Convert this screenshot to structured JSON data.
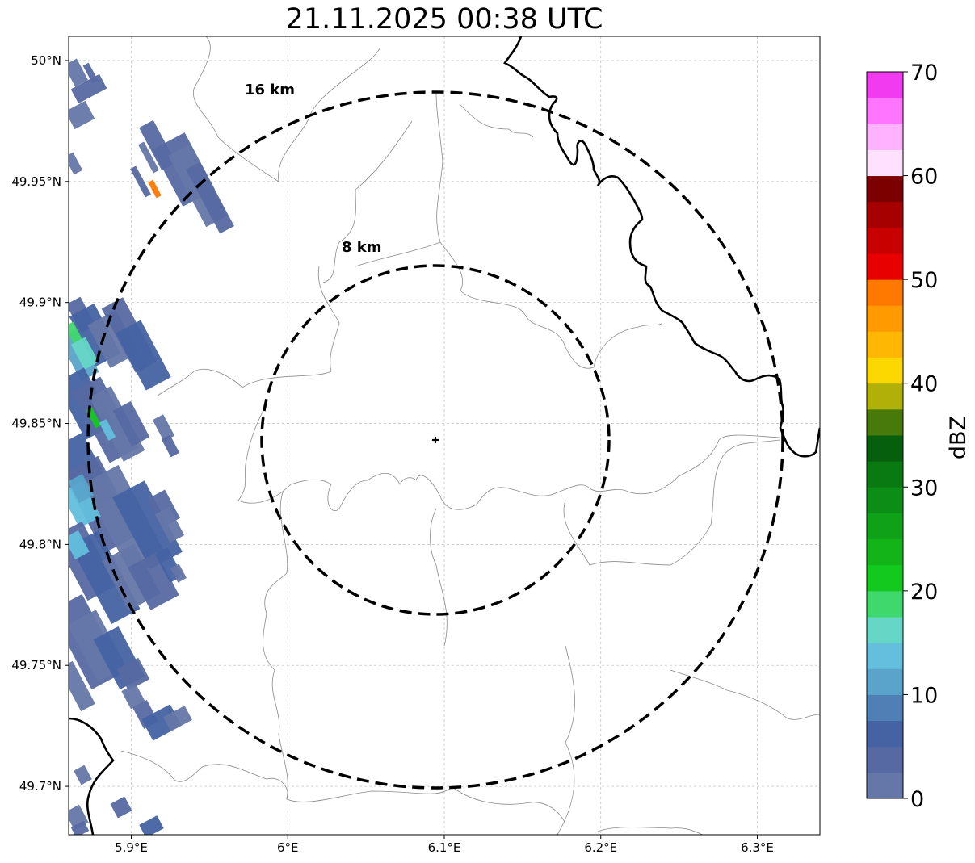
{
  "title": "21.11.2025 00:38 UTC",
  "map": {
    "lon_range": [
      5.86,
      6.34
    ],
    "lat_range": [
      49.68,
      50.01
    ],
    "x_ticks": [
      {
        "value": 5.9,
        "label": "5.9°E"
      },
      {
        "value": 6.0,
        "label": "6°E"
      },
      {
        "value": 6.1,
        "label": "6.1°E"
      },
      {
        "value": 6.2,
        "label": "6.2°E"
      },
      {
        "value": 6.3,
        "label": "6.3°E"
      }
    ],
    "y_ticks": [
      {
        "value": 50.0,
        "label": "50°N"
      },
      {
        "value": 49.95,
        "label": "49.95°N"
      },
      {
        "value": 49.9,
        "label": "49.9°N"
      },
      {
        "value": 49.85,
        "label": "49.85°N"
      },
      {
        "value": 49.8,
        "label": "49.8°N"
      },
      {
        "value": 49.75,
        "label": "49.75°N"
      },
      {
        "value": 49.7,
        "label": "49.7°N"
      }
    ],
    "gridlines": true,
    "radar_site": {
      "lon": 6.0955,
      "lat": 49.8435
    },
    "rings": [
      {
        "radius_km": 8,
        "label": "8 km"
      },
      {
        "radius_km": 16,
        "label": "16 km"
      }
    ]
  },
  "colorbar": {
    "label": "dBZ",
    "ticks": [
      "0",
      "10",
      "20",
      "30",
      "40",
      "50",
      "60",
      "70"
    ],
    "range": [
      0,
      70
    ],
    "step": 2.5,
    "colors": [
      "#6577a8",
      "#5669a2",
      "#4563a3",
      "#4f7fb4",
      "#5aa3ca",
      "#63bfdd",
      "#66d6c6",
      "#3fd86c",
      "#14c91d",
      "#12b418",
      "#0fa118",
      "#0c8d16",
      "#097a12",
      "#065f0c",
      "#487a0b",
      "#b0b008",
      "#fcd800",
      "#feb803",
      "#ff9a00",
      "#ff7800",
      "#e80000",
      "#c80000",
      "#a60000",
      "#7c0000",
      "#ffe0ff",
      "#ffb2ff",
      "#ff75ff",
      "#f23bf0"
    ]
  }
}
